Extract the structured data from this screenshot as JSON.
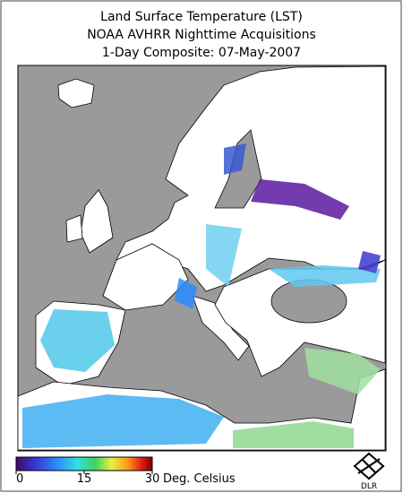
{
  "header": {
    "lines": [
      "Land Surface Temperature (LST)",
      "NOAA AVHRR Nighttime Acquisitions",
      "1-Day Composite: 07-May-2007"
    ]
  },
  "legend": {
    "range": [
      0,
      30
    ],
    "ticks": [
      0,
      15,
      30
    ],
    "unit": "Deg. Celsius"
  },
  "logo": "DLR"
}
